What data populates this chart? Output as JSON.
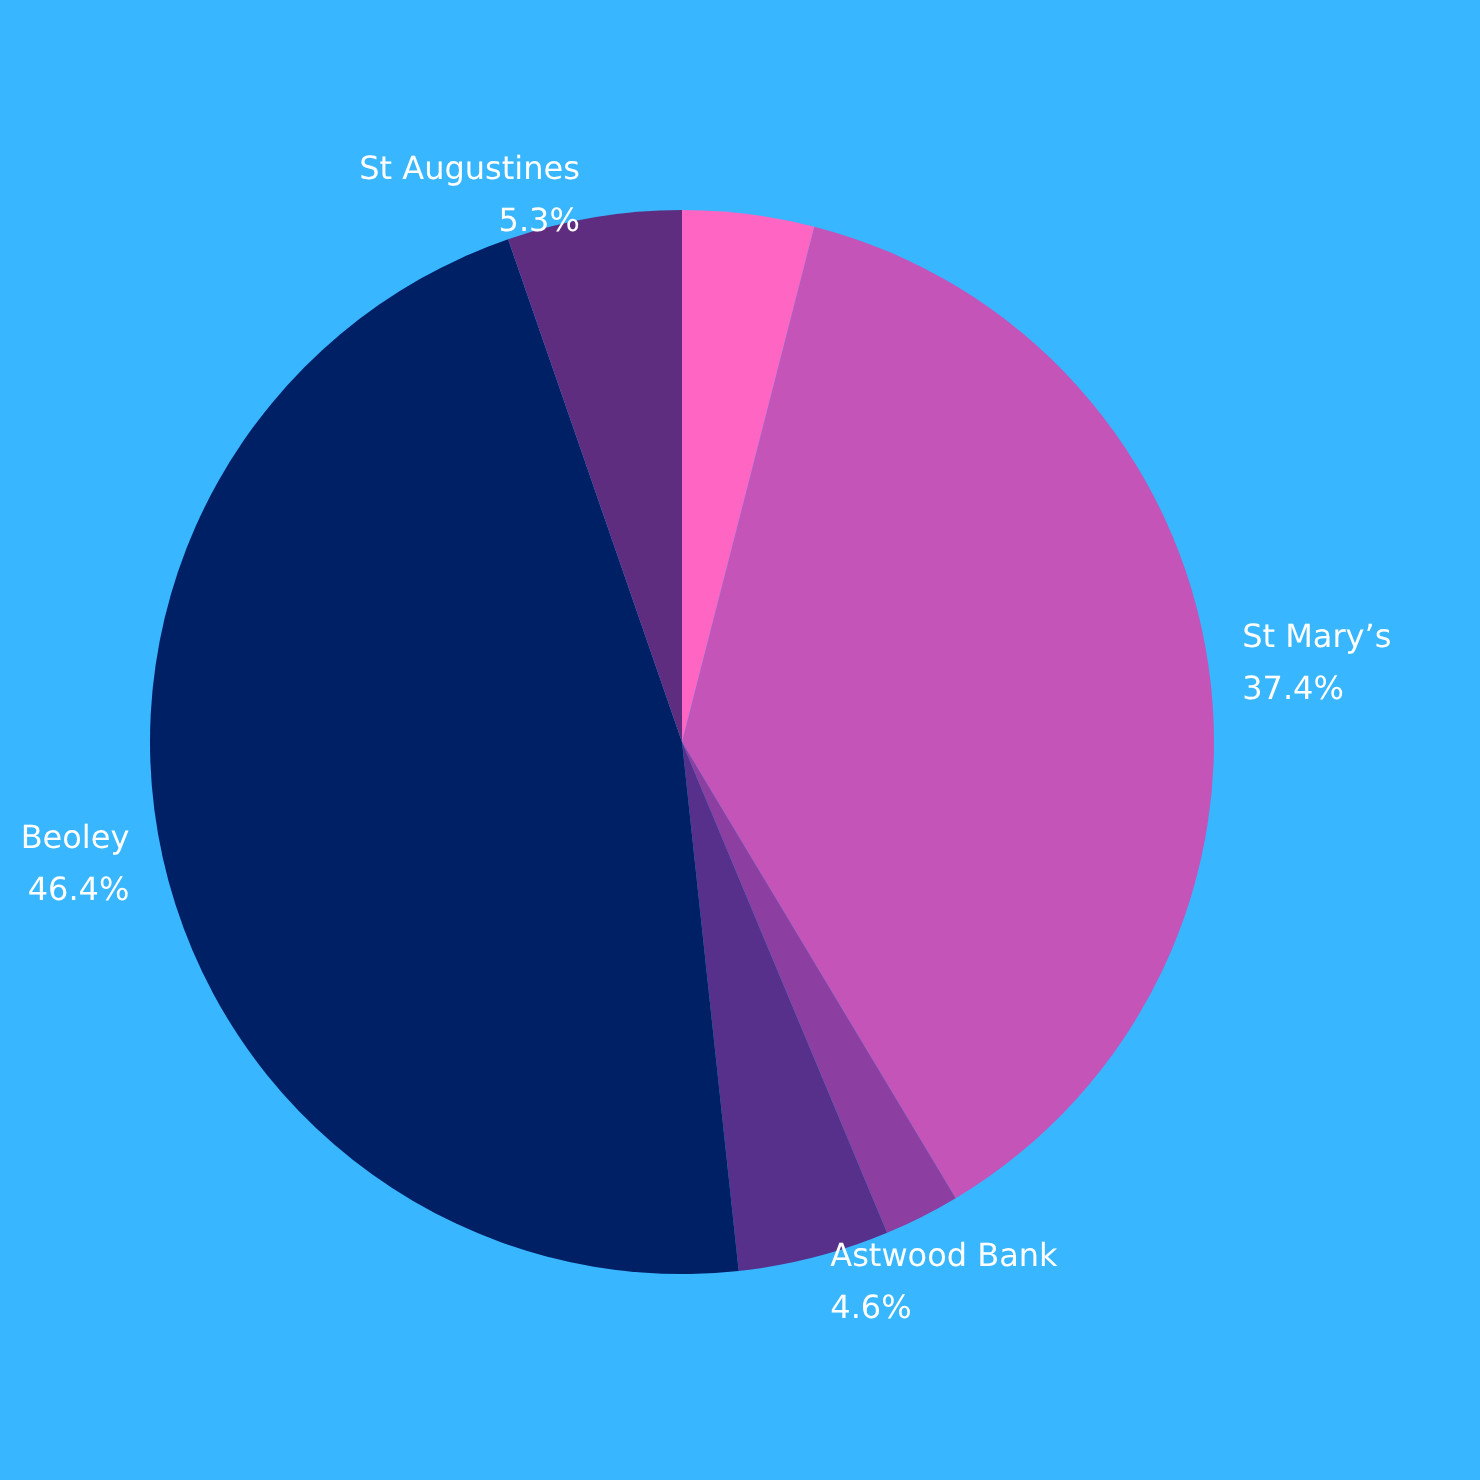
{
  "chart_data": {
    "type": "pie",
    "categories": [
      null,
      "St Mary’s",
      null,
      "Astwood Bank",
      "Beoley",
      "St Augustines"
    ],
    "values": [
      4.0,
      37.4,
      2.3,
      4.6,
      46.4,
      5.3
    ],
    "value_labels": [
      null,
      "37.4%",
      null,
      "4.6%",
      "46.4%",
      "5.3%"
    ],
    "colors": [
      "#ff66c4",
      "#c454b8",
      "#8c3fa0",
      "#56308a",
      "#002066",
      "#5f2d7f"
    ]
  }
}
